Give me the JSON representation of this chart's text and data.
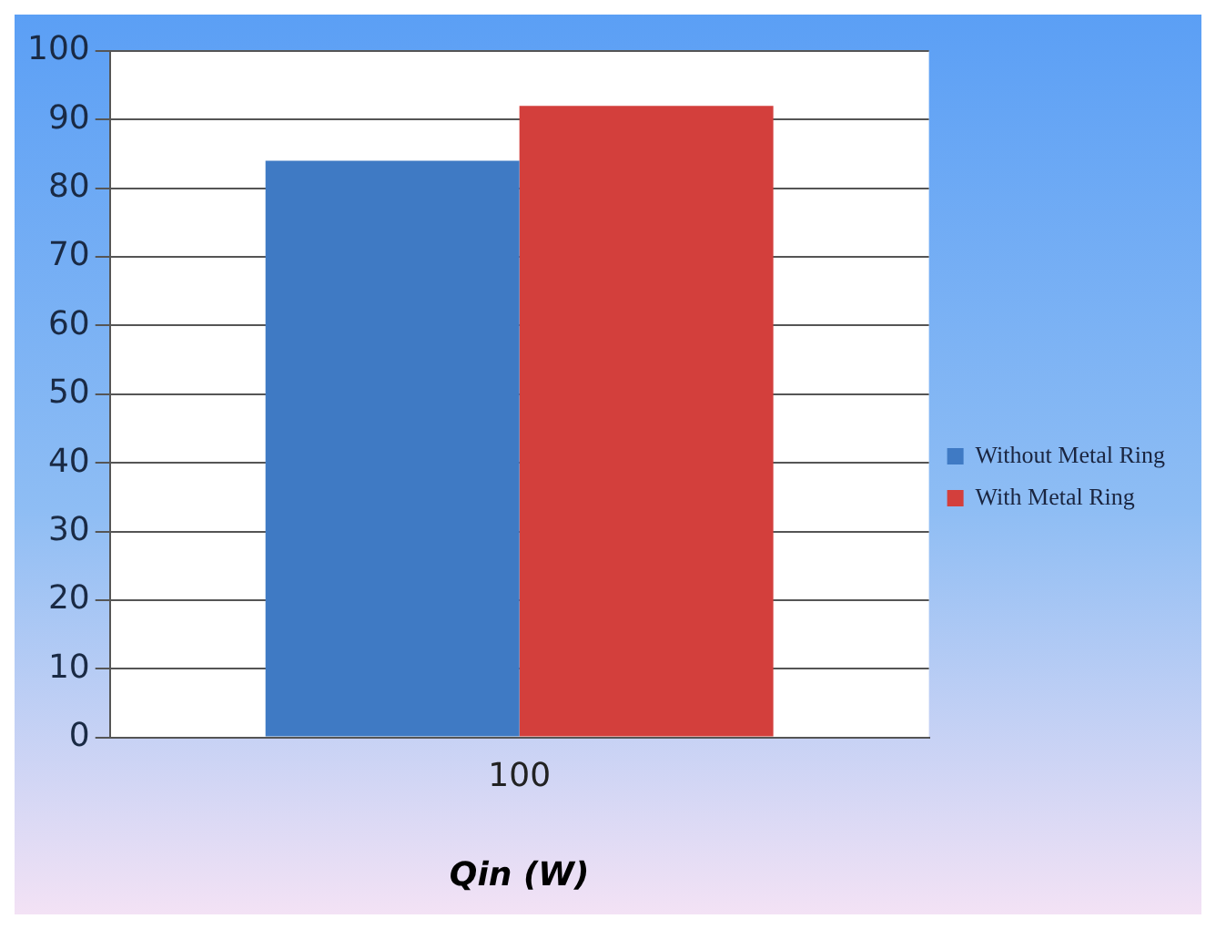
{
  "chart_data": {
    "type": "bar",
    "categories": [
      "100"
    ],
    "xlabel": "Qin (W)",
    "series": [
      {
        "name": "Without Metal Ring",
        "color": "#3f7ac4",
        "values": [
          84
        ]
      },
      {
        "name": "With Metal Ring",
        "color": "#d33f3c",
        "values": [
          92
        ]
      }
    ],
    "ylim": [
      0,
      100
    ],
    "yticks": [
      0,
      10,
      20,
      30,
      40,
      50,
      60,
      70,
      80,
      90,
      100
    ],
    "grid": "y",
    "legend": "right"
  }
}
